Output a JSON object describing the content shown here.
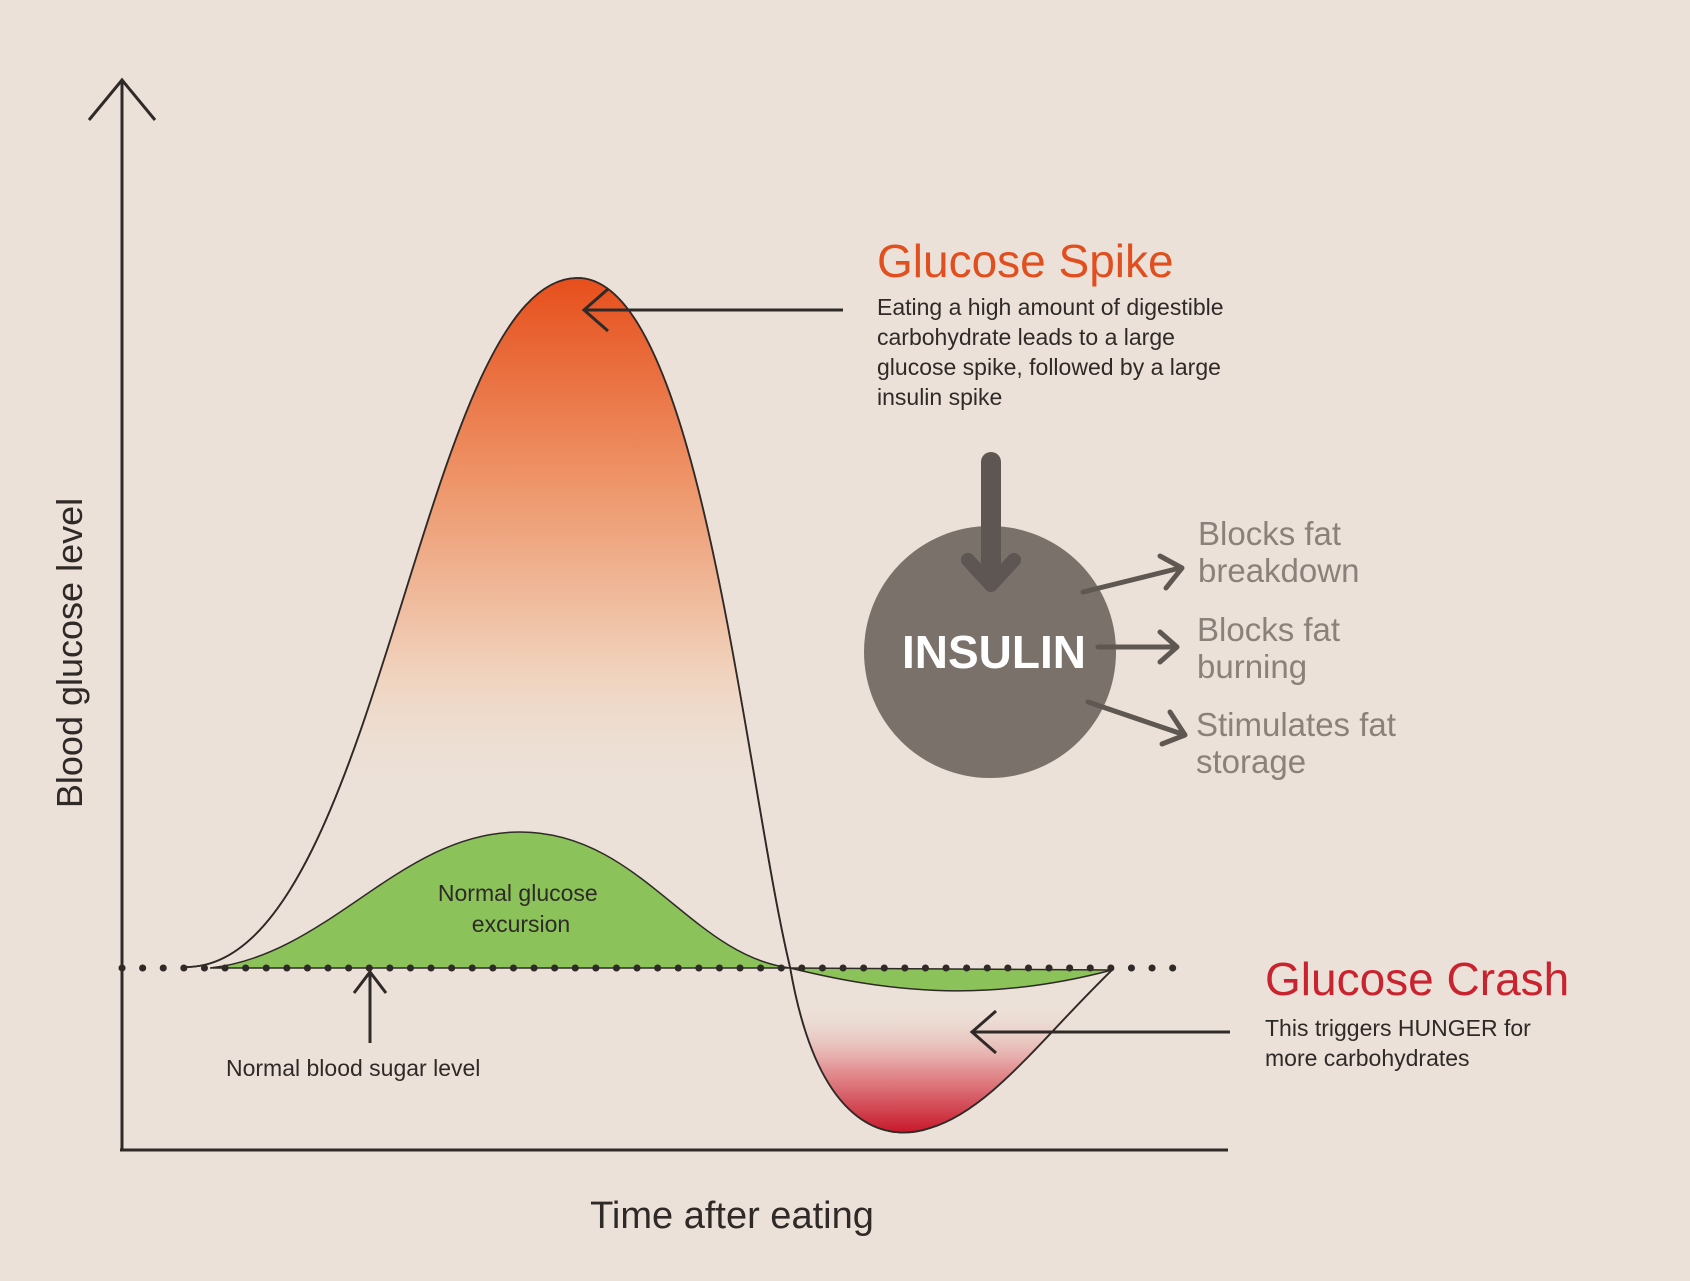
{
  "axes": {
    "y_label": "Blood glucose level",
    "x_label": "Time after eating"
  },
  "spike": {
    "title": "Glucose Spike",
    "description_lines": [
      "Eating a high amount of digestible",
      "carbohydrate leads to a large",
      "glucose spike, followed by a large",
      "insulin spike"
    ]
  },
  "insulin": {
    "label": "INSULIN",
    "effects": [
      {
        "lines": [
          "Blocks fat",
          "breakdown"
        ]
      },
      {
        "lines": [
          "Blocks fat",
          "burning"
        ]
      },
      {
        "lines": [
          "Stimulates fat",
          "storage"
        ]
      }
    ]
  },
  "normal_excursion": {
    "lines": [
      "Normal glucose",
      "excursion"
    ]
  },
  "baseline": {
    "label": "Normal blood sugar level"
  },
  "crash": {
    "title": "Glucose Crash",
    "description_lines": [
      "This triggers HUNGER for",
      "more carbohydrates"
    ]
  },
  "colors": {
    "background": "#ece1d8",
    "spike_top": "#e85524",
    "spike_title": "#e24f1f",
    "crash_title": "#c9232f",
    "crash_fill": "#cc1f2c",
    "normal_green": "#8bc25a",
    "insulin_circle": "#7b716b",
    "effects_text": "#8a817b",
    "line": "#2f2a27"
  }
}
